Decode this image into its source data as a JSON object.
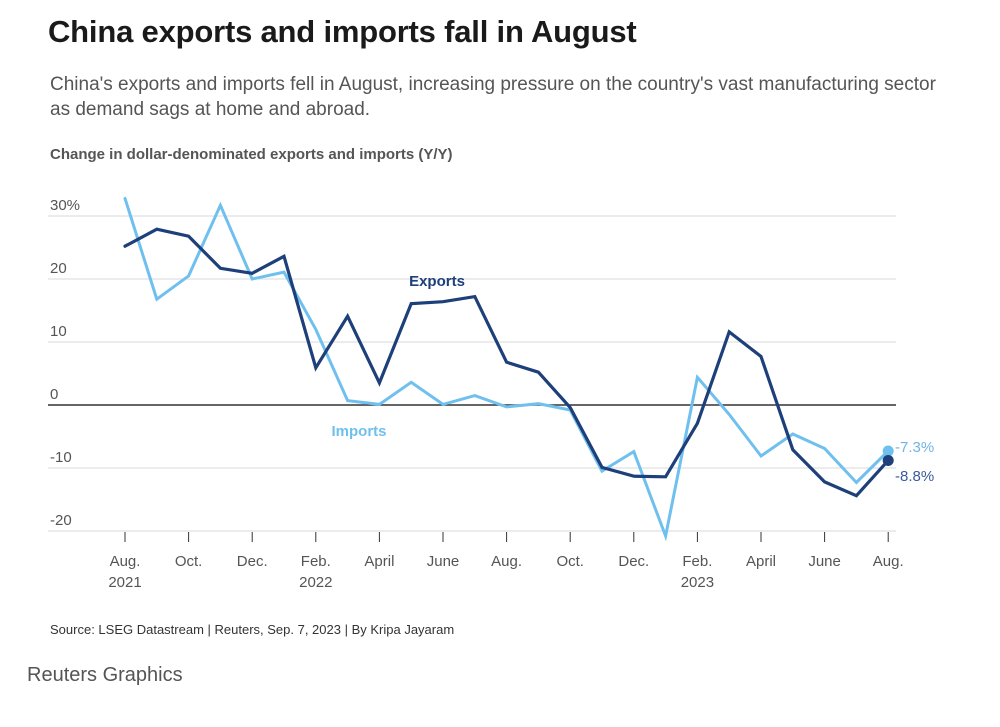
{
  "title": "China exports and imports fall in August",
  "subtitle": "China's exports and imports fell in August, increasing pressure on the country's vast manufacturing sector as demand sags at home and abroad.",
  "chart_heading": "Change in dollar-denominated exports and imports (Y/Y)",
  "source": "Source: LSEG Datastream | Reuters, Sep. 7, 2023 | By Kripa Jayaram",
  "brand": "Reuters Graphics",
  "colors": {
    "exports": "#1d3f7a",
    "imports": "#6fc0ee",
    "grid": "#d9d9d9",
    "zero": "#333333",
    "exports_end_label": "#3a5a9a",
    "imports_end_label": "#6fb4e3"
  },
  "chart_data": {
    "type": "line",
    "title": "Change in dollar-denominated exports and imports (Y/Y)",
    "x_tick_labels": [
      {
        "index": 0,
        "line1": "Aug.",
        "line2": "2021"
      },
      {
        "index": 2,
        "line1": "Oct.",
        "line2": ""
      },
      {
        "index": 4,
        "line1": "Dec.",
        "line2": ""
      },
      {
        "index": 6,
        "line1": "Feb.",
        "line2": "2022"
      },
      {
        "index": 8,
        "line1": "April",
        "line2": ""
      },
      {
        "index": 10,
        "line1": "June",
        "line2": ""
      },
      {
        "index": 12,
        "line1": "Aug.",
        "line2": ""
      },
      {
        "index": 14,
        "line1": "Oct.",
        "line2": ""
      },
      {
        "index": 16,
        "line1": "Dec.",
        "line2": ""
      },
      {
        "index": 18,
        "line1": "Feb.",
        "line2": "2023"
      },
      {
        "index": 20,
        "line1": "April",
        "line2": ""
      },
      {
        "index": 22,
        "line1": "June",
        "line2": ""
      },
      {
        "index": 24,
        "line1": "Aug.",
        "line2": ""
      }
    ],
    "y_ticks": [
      {
        "value": 30,
        "label": "30%"
      },
      {
        "value": 20,
        "label": "20"
      },
      {
        "value": 10,
        "label": "10"
      },
      {
        "value": 0,
        "label": "0"
      },
      {
        "value": -10,
        "label": "-10"
      },
      {
        "value": -20,
        "label": "-20"
      }
    ],
    "ylim": [
      -20,
      30
    ],
    "grid": true,
    "series": [
      {
        "name": "Exports",
        "values": [
          25.2,
          27.9,
          26.8,
          21.7,
          20.9,
          23.6,
          5.9,
          14.1,
          3.5,
          16.1,
          16.4,
          17.2,
          6.8,
          5.2,
          -0.4,
          -9.9,
          -11.3,
          -11.4,
          -2.9,
          11.6,
          7.7,
          -7.1,
          -12.2,
          -14.4,
          -8.8
        ],
        "end_label": "-8.8%"
      },
      {
        "name": "Imports",
        "values": [
          32.8,
          16.8,
          20.5,
          31.7,
          20.0,
          21.1,
          12.0,
          0.7,
          0.1,
          3.6,
          0.1,
          1.5,
          -0.3,
          0.2,
          -0.8,
          -10.5,
          -7.4,
          -20.8,
          4.4,
          -1.5,
          -8.1,
          -4.6,
          -6.9,
          -12.3,
          -7.3
        ],
        "end_label": "-7.3%"
      }
    ]
  }
}
